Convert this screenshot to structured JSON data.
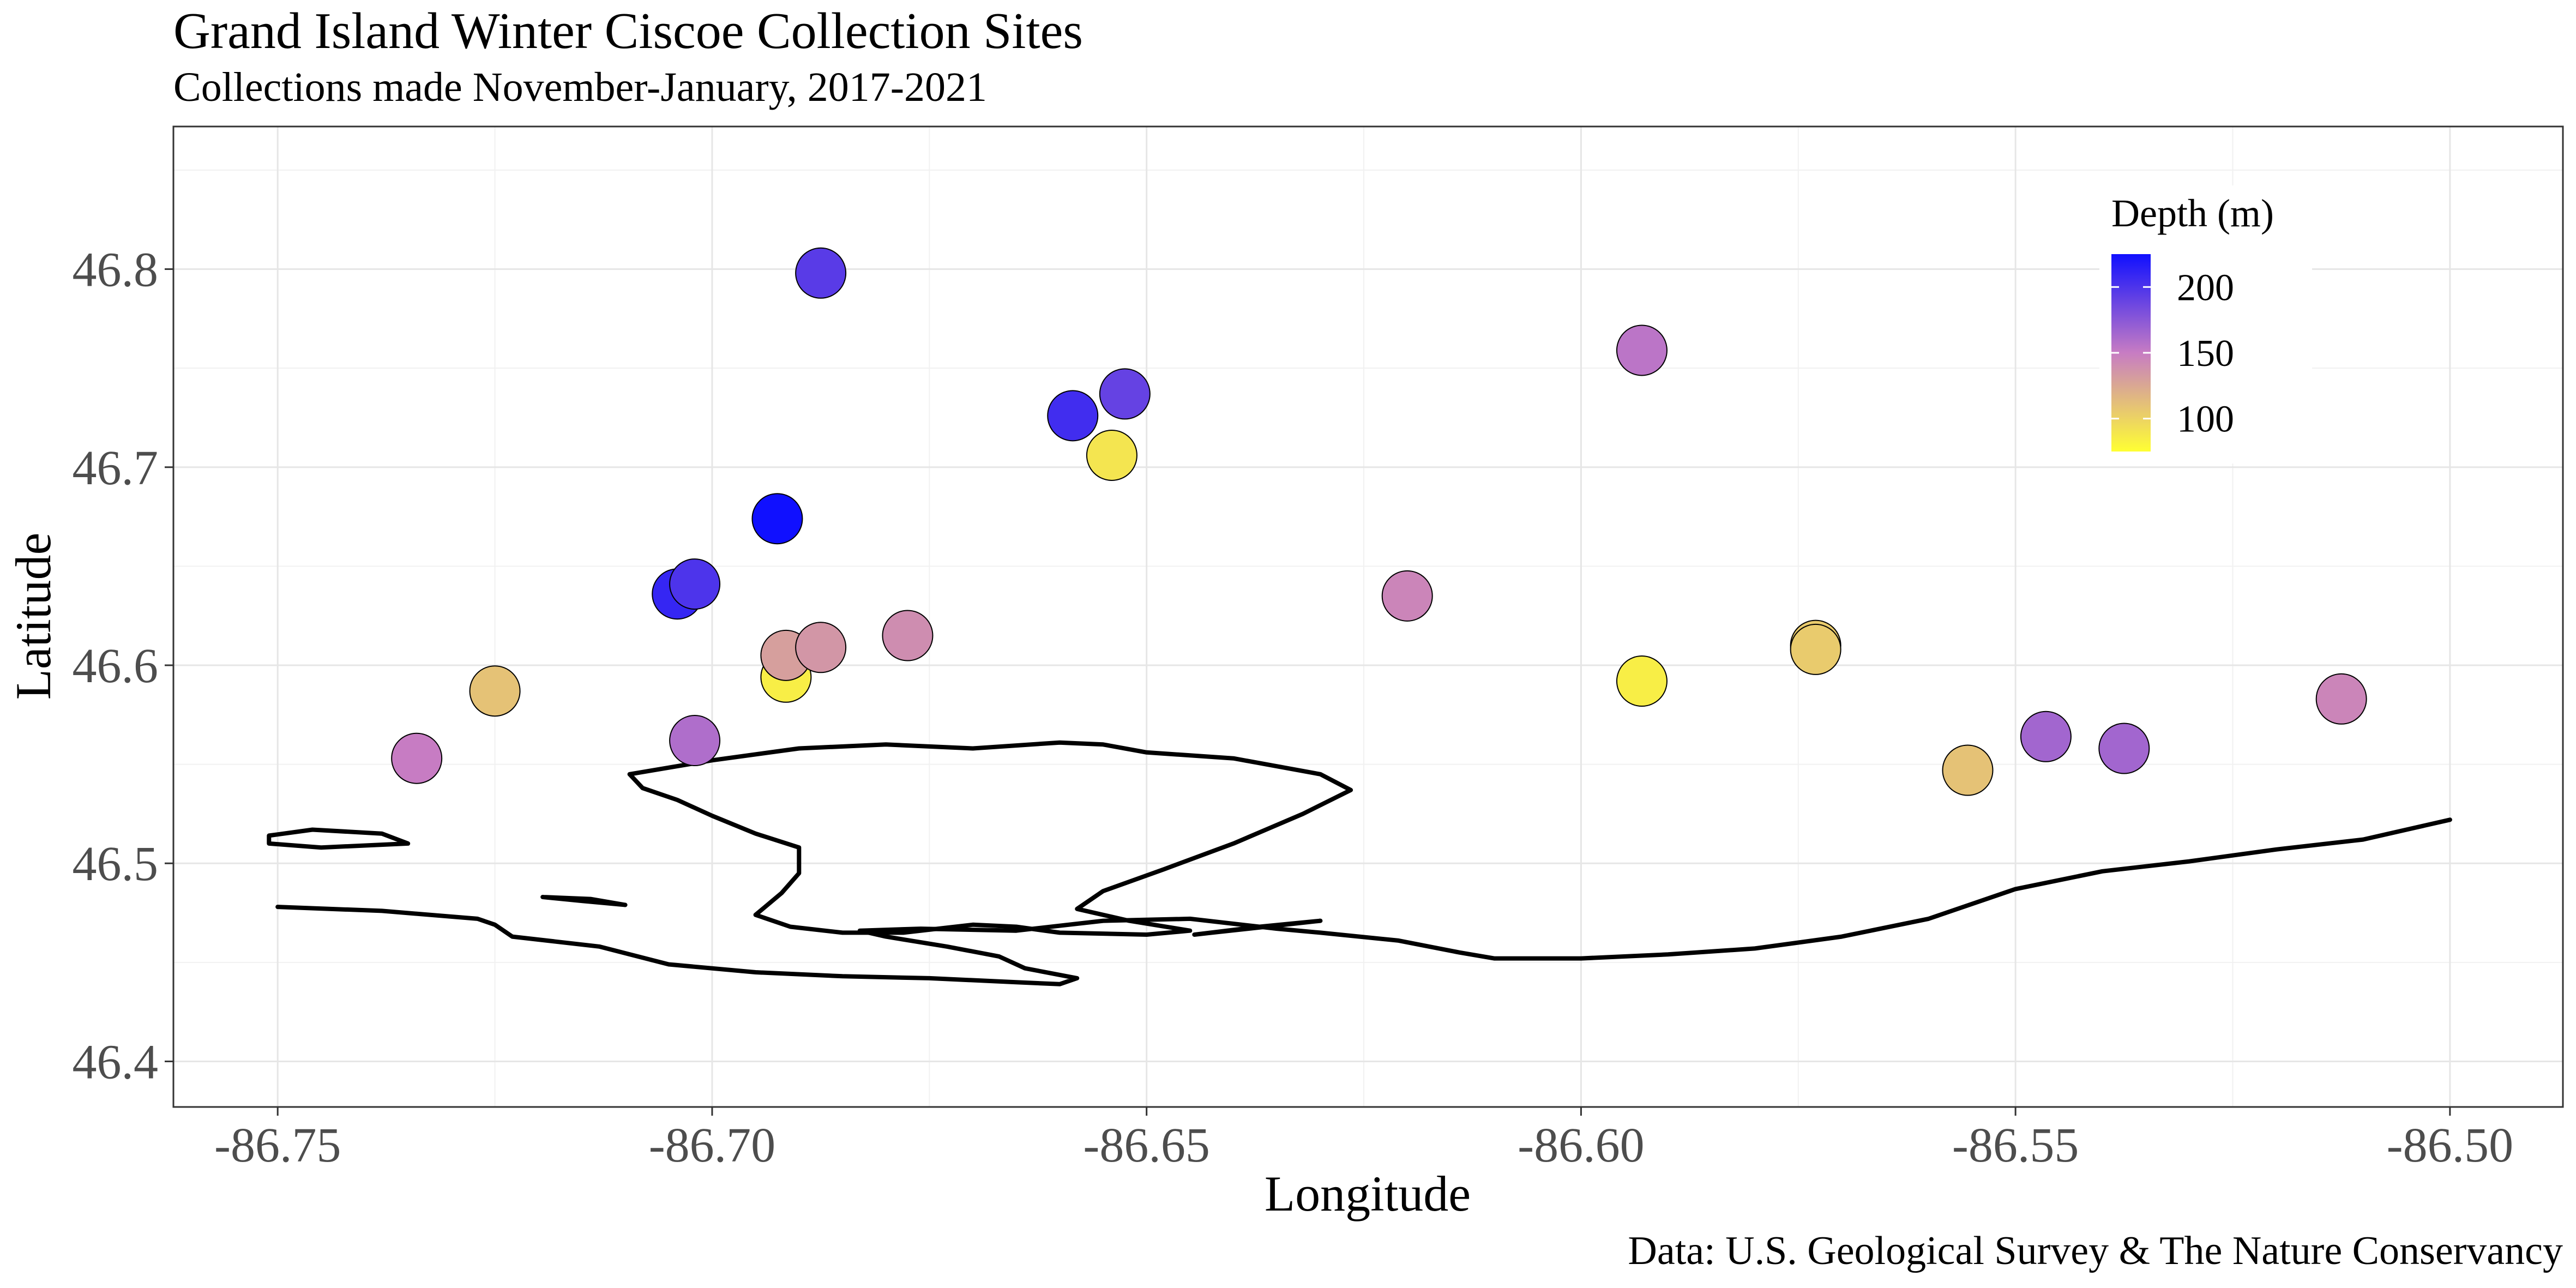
{
  "chart_data": {
    "type": "scatter",
    "title": "Grand Island Winter Ciscoe Collection Sites",
    "subtitle": "Collections made November-January, 2017-2021",
    "xlabel": "Longitude",
    "ylabel": "Latitude",
    "caption": "Data: U.S. Geological Survey & The Nature Conservancy",
    "xlim": [
      -86.762,
      -86.487
    ],
    "ylim": [
      46.377,
      46.872
    ],
    "x_ticks": [
      -86.75,
      -86.7,
      -86.65,
      -86.6,
      -86.55,
      -86.5
    ],
    "x_tick_labels": [
      "-86.75",
      "-86.70",
      "-86.65",
      "-86.60",
      "-86.55",
      "-86.50"
    ],
    "y_ticks": [
      46.4,
      46.5,
      46.6,
      46.7,
      46.8
    ],
    "y_tick_labels": [
      "46.4",
      "46.5",
      "46.6",
      "46.7",
      "46.8"
    ],
    "grid": true,
    "legend": {
      "title": "Depth (m)",
      "placement": "top-right",
      "type": "colorbar",
      "range": [
        75,
        225
      ],
      "ticks": [
        100,
        150,
        200
      ],
      "tick_labels": [
        "100",
        "150",
        "200"
      ],
      "colors": {
        "low": "#ffff33",
        "mid": "#c77cc3",
        "high": "#1010ff"
      }
    },
    "points": [
      {
        "lon": -86.734,
        "lat": 46.553,
        "depth": 150
      },
      {
        "lon": -86.725,
        "lat": 46.587,
        "depth": 110
      },
      {
        "lon": -86.704,
        "lat": 46.636,
        "depth": 210
      },
      {
        "lon": -86.702,
        "lat": 46.641,
        "depth": 200
      },
      {
        "lon": -86.702,
        "lat": 46.562,
        "depth": 160
      },
      {
        "lon": -86.6875,
        "lat": 46.798,
        "depth": 195
      },
      {
        "lon": -86.6925,
        "lat": 46.674,
        "depth": 225
      },
      {
        "lon": -86.6915,
        "lat": 46.594,
        "depth": 85
      },
      {
        "lon": -86.6915,
        "lat": 46.605,
        "depth": 130
      },
      {
        "lon": -86.6875,
        "lat": 46.609,
        "depth": 135
      },
      {
        "lon": -86.6775,
        "lat": 46.615,
        "depth": 140
      },
      {
        "lon": -86.6585,
        "lat": 46.726,
        "depth": 205
      },
      {
        "lon": -86.6525,
        "lat": 46.737,
        "depth": 190
      },
      {
        "lon": -86.654,
        "lat": 46.706,
        "depth": 90
      },
      {
        "lon": -86.62,
        "lat": 46.635,
        "depth": 145
      },
      {
        "lon": -86.593,
        "lat": 46.759,
        "depth": 155
      },
      {
        "lon": -86.593,
        "lat": 46.592,
        "depth": 85
      },
      {
        "lon": -86.573,
        "lat": 46.61,
        "depth": 105
      },
      {
        "lon": -86.573,
        "lat": 46.608,
        "depth": 105
      },
      {
        "lon": -86.5555,
        "lat": 46.547,
        "depth": 110
      },
      {
        "lon": -86.5465,
        "lat": 46.564,
        "depth": 165
      },
      {
        "lon": -86.5375,
        "lat": 46.558,
        "depth": 165
      },
      {
        "lon": -86.5125,
        "lat": 46.583,
        "depth": 145
      }
    ],
    "shorelines": [
      [
        [
          -86.75,
          46.478
        ],
        [
          -86.738,
          46.476
        ],
        [
          -86.727,
          46.472
        ],
        [
          -86.725,
          46.469
        ],
        [
          -86.723,
          46.463
        ],
        [
          -86.713,
          46.458
        ],
        [
          -86.705,
          46.449
        ],
        [
          -86.695,
          46.445
        ],
        [
          -86.685,
          46.443
        ],
        [
          -86.675,
          46.442
        ],
        [
          -86.665,
          46.44
        ],
        [
          -86.66,
          46.439
        ],
        [
          -86.658,
          46.442
        ],
        [
          -86.664,
          46.447
        ],
        [
          -86.667,
          46.453
        ],
        [
          -86.673,
          46.458
        ],
        [
          -86.68,
          46.463
        ],
        [
          -86.683,
          46.466
        ],
        [
          -86.676,
          46.467
        ],
        [
          -86.665,
          46.466
        ],
        [
          -86.655,
          46.471
        ],
        [
          -86.645,
          46.472
        ],
        [
          -86.635,
          46.467
        ],
        [
          -86.63,
          46.465
        ],
        [
          -86.621,
          46.461
        ],
        [
          -86.614,
          46.455
        ],
        [
          -86.61,
          46.452
        ],
        [
          -86.6,
          46.452
        ],
        [
          -86.59,
          46.454
        ],
        [
          -86.58,
          46.457
        ],
        [
          -86.57,
          46.463
        ],
        [
          -86.56,
          46.472
        ],
        [
          -86.55,
          46.487
        ],
        [
          -86.54,
          46.496
        ],
        [
          -86.53,
          46.501
        ],
        [
          -86.52,
          46.507
        ],
        [
          -86.51,
          46.512
        ],
        [
          -86.5,
          46.522
        ]
      ],
      [
        [
          -86.7095,
          46.545
        ],
        [
          -86.7,
          46.552
        ],
        [
          -86.69,
          46.558
        ],
        [
          -86.68,
          46.56
        ],
        [
          -86.67,
          46.558
        ],
        [
          -86.66,
          46.561
        ],
        [
          -86.655,
          46.56
        ],
        [
          -86.65,
          46.556
        ],
        [
          -86.64,
          46.553
        ],
        [
          -86.63,
          46.545
        ],
        [
          -86.6265,
          46.537
        ],
        [
          -86.632,
          46.525
        ],
        [
          -86.64,
          46.51
        ],
        [
          -86.648,
          46.497
        ],
        [
          -86.655,
          46.486
        ],
        [
          -86.658,
          46.477
        ],
        [
          -86.652,
          46.471
        ],
        [
          -86.645,
          46.466
        ],
        [
          -86.65,
          46.464
        ],
        [
          -86.66,
          46.465
        ],
        [
          -86.665,
          46.468
        ],
        [
          -86.67,
          46.469
        ],
        [
          -86.678,
          46.465
        ],
        [
          -86.685,
          46.465
        ],
        [
          -86.691,
          46.468
        ],
        [
          -86.695,
          46.474
        ],
        [
          -86.692,
          46.485
        ],
        [
          -86.69,
          46.495
        ],
        [
          -86.69,
          46.508
        ],
        [
          -86.695,
          46.515
        ],
        [
          -86.7,
          46.524
        ],
        [
          -86.704,
          46.532
        ],
        [
          -86.708,
          46.538
        ],
        [
          -86.7095,
          46.545
        ]
      ],
      [
        [
          -86.751,
          46.514
        ],
        [
          -86.746,
          46.517
        ],
        [
          -86.738,
          46.515
        ],
        [
          -86.735,
          46.51
        ],
        [
          -86.745,
          46.508
        ],
        [
          -86.751,
          46.51
        ],
        [
          -86.751,
          46.514
        ]
      ],
      [
        [
          -86.6445,
          46.464
        ],
        [
          -86.637,
          46.468
        ],
        [
          -86.63,
          46.471
        ],
        [
          -86.6425,
          46.465
        ],
        [
          -86.6445,
          46.464
        ]
      ],
      [
        [
          -86.7195,
          46.483
        ],
        [
          -86.714,
          46.482
        ],
        [
          -86.71,
          46.479
        ],
        [
          -86.715,
          46.481
        ],
        [
          -86.7195,
          46.483
        ]
      ]
    ]
  }
}
